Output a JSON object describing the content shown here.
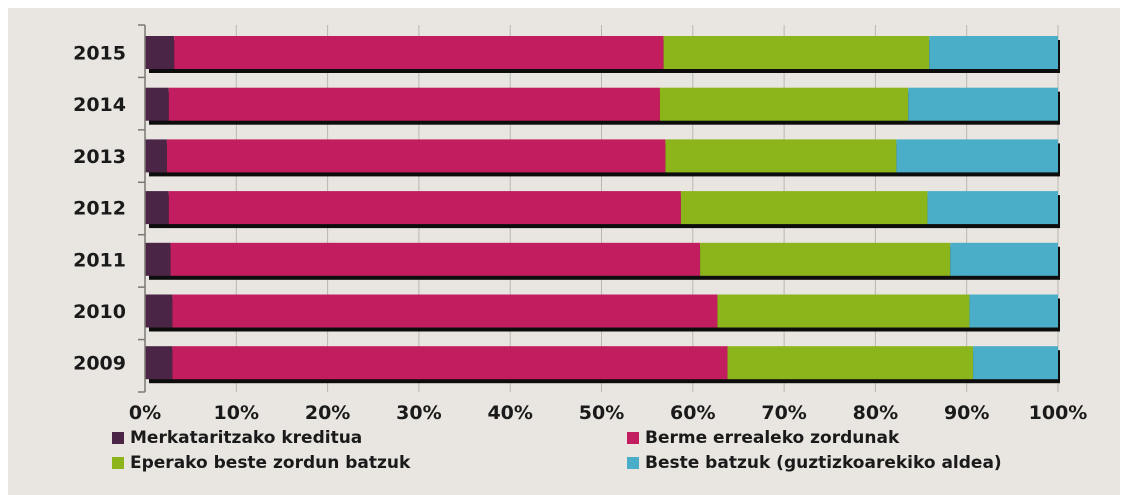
{
  "chart_data": {
    "type": "bar",
    "orientation": "horizontal",
    "stacked": true,
    "categories": [
      "2015",
      "2014",
      "2013",
      "2012",
      "2011",
      "2010",
      "2009"
    ],
    "series": [
      {
        "name": "Merkataritzako kreditua",
        "color": "#4a2545",
        "values": [
          3.2,
          2.6,
          2.4,
          2.6,
          2.8,
          3.0,
          3.0
        ]
      },
      {
        "name": "Berme errealeko zordunak",
        "color": "#c21d5e",
        "values": [
          53.6,
          53.8,
          54.6,
          56.1,
          58.0,
          59.7,
          60.8
        ]
      },
      {
        "name": "Eperako beste zordun batzuk",
        "color": "#8bb51b",
        "values": [
          29.1,
          27.2,
          25.3,
          27.0,
          27.4,
          27.6,
          26.9
        ]
      },
      {
        "name": "Beste batzuk (guztizkoarekiko aldea)",
        "color": "#4aaec8",
        "values": [
          14.1,
          16.4,
          17.7,
          14.3,
          11.8,
          9.7,
          9.3
        ]
      }
    ],
    "x_ticks": [
      "0%",
      "10%",
      "20%",
      "30%",
      "40%",
      "50%",
      "60%",
      "70%",
      "80%",
      "90%",
      "100%"
    ],
    "xlim": [
      0,
      100
    ],
    "grid": true,
    "legend_position": "bottom"
  }
}
